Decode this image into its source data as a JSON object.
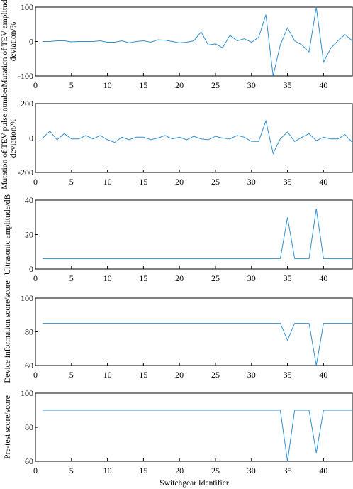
{
  "xlabel": "Switchgear Identifier",
  "colors": {
    "line": "#2f8fd0",
    "axis": "#000000"
  },
  "chart_data": [
    {
      "type": "line",
      "ylabel_lines": [
        "Mutation of TEV amplitude",
        "deviation/%"
      ],
      "ylim": [
        -100,
        100
      ],
      "yticks": [
        -100,
        0,
        100
      ],
      "xlim": [
        0,
        44
      ],
      "xticks": [
        0,
        5,
        10,
        15,
        20,
        25,
        30,
        35,
        40
      ],
      "x": [
        1,
        2,
        3,
        4,
        5,
        6,
        7,
        8,
        9,
        10,
        11,
        12,
        13,
        14,
        15,
        16,
        17,
        18,
        19,
        20,
        21,
        22,
        23,
        24,
        25,
        26,
        27,
        28,
        29,
        30,
        31,
        32,
        33,
        34,
        35,
        36,
        37,
        38,
        39,
        40,
        41,
        42,
        43,
        44
      ],
      "values": [
        0,
        0,
        2,
        2,
        -1,
        0,
        0,
        0,
        2,
        -2,
        -2,
        2,
        -4,
        0,
        2,
        -2,
        5,
        4,
        0,
        -4,
        -2,
        2,
        28,
        -10,
        -7,
        -18,
        18,
        2,
        8,
        -2,
        12,
        78,
        -100,
        -10,
        40,
        2,
        -10,
        -30,
        100,
        -60,
        -20,
        2,
        20,
        2
      ]
    },
    {
      "type": "line",
      "ylabel_lines": [
        "Mutation of TEV pulse number",
        "deviation/%"
      ],
      "ylim": [
        -200,
        200
      ],
      "yticks": [
        -200,
        0,
        200
      ],
      "xlim": [
        0,
        44
      ],
      "xticks": [
        0,
        5,
        10,
        15,
        20,
        25,
        30,
        35,
        40
      ],
      "x": [
        1,
        2,
        3,
        4,
        5,
        6,
        7,
        8,
        9,
        10,
        11,
        12,
        13,
        14,
        15,
        16,
        17,
        18,
        19,
        20,
        21,
        22,
        23,
        24,
        25,
        26,
        27,
        28,
        29,
        30,
        31,
        32,
        33,
        34,
        35,
        36,
        37,
        38,
        39,
        40,
        41,
        42,
        43,
        44
      ],
      "values": [
        0,
        40,
        -10,
        25,
        -5,
        -5,
        15,
        -5,
        15,
        -10,
        -25,
        5,
        -10,
        5,
        5,
        -10,
        0,
        15,
        -5,
        5,
        -10,
        10,
        -5,
        -10,
        10,
        0,
        -5,
        15,
        5,
        -20,
        -20,
        100,
        -90,
        -5,
        35,
        -20,
        5,
        25,
        -15,
        5,
        -5,
        -5,
        20,
        -25
      ]
    },
    {
      "type": "line",
      "ylabel_lines": [
        "Ultrasonic amplitude/dB"
      ],
      "ylim": [
        0,
        40
      ],
      "yticks": [
        0,
        20,
        40
      ],
      "xlim": [
        0,
        44
      ],
      "xticks": [
        0,
        5,
        10,
        15,
        20,
        25,
        30,
        35,
        40
      ],
      "x": [
        1,
        2,
        3,
        4,
        5,
        6,
        7,
        8,
        9,
        10,
        11,
        12,
        13,
        14,
        15,
        16,
        17,
        18,
        19,
        20,
        21,
        22,
        23,
        24,
        25,
        26,
        27,
        28,
        29,
        30,
        31,
        32,
        33,
        34,
        35,
        36,
        37,
        38,
        39,
        40,
        41,
        42,
        43,
        44
      ],
      "values": [
        6,
        6,
        6,
        6,
        6,
        6,
        6,
        6,
        6,
        6,
        6,
        6,
        6,
        6,
        6,
        6,
        6,
        6,
        6,
        6,
        6,
        6,
        6,
        6,
        6,
        6,
        6,
        6,
        6,
        6,
        6,
        6,
        6,
        6,
        30,
        6,
        6,
        6,
        35,
        6,
        6,
        6,
        6,
        6
      ]
    },
    {
      "type": "line",
      "ylabel_lines": [
        "Device information score/score"
      ],
      "ylim": [
        60,
        100
      ],
      "yticks": [
        60,
        80,
        100
      ],
      "xlim": [
        0,
        44
      ],
      "xticks": [
        0,
        5,
        10,
        15,
        20,
        25,
        30,
        35,
        40
      ],
      "x": [
        1,
        2,
        3,
        4,
        5,
        6,
        7,
        8,
        9,
        10,
        11,
        12,
        13,
        14,
        15,
        16,
        17,
        18,
        19,
        20,
        21,
        22,
        23,
        24,
        25,
        26,
        27,
        28,
        29,
        30,
        31,
        32,
        33,
        34,
        35,
        36,
        37,
        38,
        39,
        40,
        41,
        42,
        43,
        44
      ],
      "values": [
        85,
        85,
        85,
        85,
        85,
        85,
        85,
        85,
        85,
        85,
        85,
        85,
        85,
        85,
        85,
        85,
        85,
        85,
        85,
        85,
        85,
        85,
        85,
        85,
        85,
        85,
        85,
        85,
        85,
        85,
        85,
        85,
        85,
        85,
        75,
        85,
        85,
        85,
        60,
        85,
        85,
        85,
        85,
        85
      ]
    },
    {
      "type": "line",
      "ylabel_lines": [
        "Pre-test score/score"
      ],
      "ylim": [
        60,
        100
      ],
      "yticks": [
        60,
        80,
        100
      ],
      "xlim": [
        0,
        44
      ],
      "xticks": [
        0,
        5,
        10,
        15,
        20,
        25,
        30,
        35,
        40
      ],
      "x": [
        1,
        2,
        3,
        4,
        5,
        6,
        7,
        8,
        9,
        10,
        11,
        12,
        13,
        14,
        15,
        16,
        17,
        18,
        19,
        20,
        21,
        22,
        23,
        24,
        25,
        26,
        27,
        28,
        29,
        30,
        31,
        32,
        33,
        34,
        35,
        36,
        37,
        38,
        39,
        40,
        41,
        42,
        43,
        44
      ],
      "values": [
        90,
        90,
        90,
        90,
        90,
        90,
        90,
        90,
        90,
        90,
        90,
        90,
        90,
        90,
        90,
        90,
        90,
        90,
        90,
        90,
        90,
        90,
        90,
        90,
        90,
        90,
        90,
        90,
        90,
        90,
        90,
        90,
        90,
        90,
        60,
        90,
        90,
        90,
        65,
        90,
        90,
        90,
        90,
        90
      ]
    }
  ]
}
